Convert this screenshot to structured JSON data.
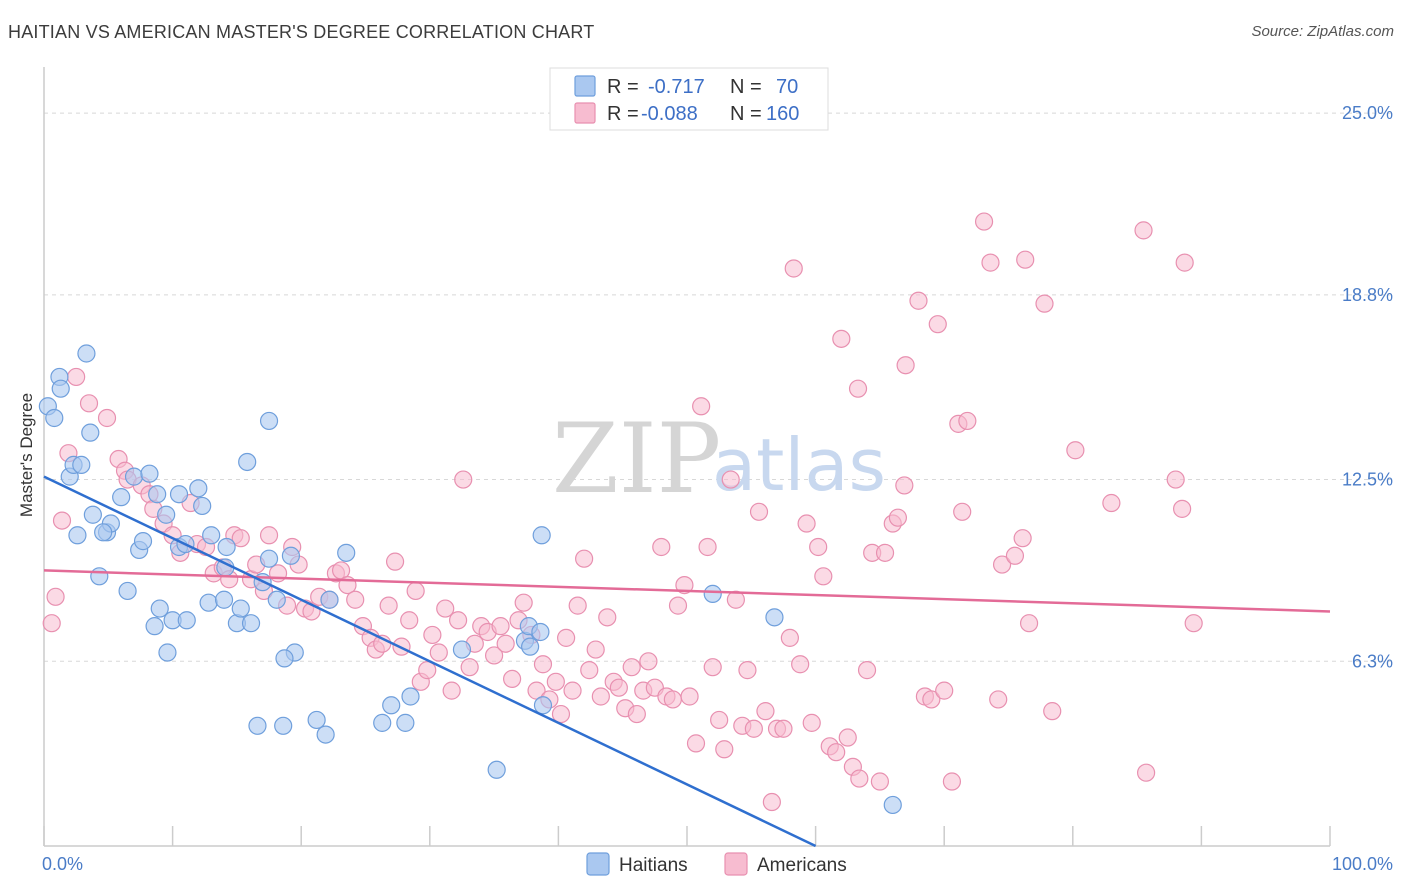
{
  "header": {
    "title": "HAITIAN VS AMERICAN MASTER'S DEGREE CORRELATION CHART",
    "source": "Source: ZipAtlas.com"
  },
  "legend": {
    "rows": [
      {
        "r_label": "R =",
        "r_value": "-0.717",
        "n_label": "N =",
        "n_value": "70"
      },
      {
        "r_label": "R =",
        "r_value": "-0.088",
        "n_label": "N =",
        "n_value": "160"
      }
    ]
  },
  "bottom_legend": [
    "Haitians",
    "Americans"
  ],
  "watermark": {
    "zip": "ZIP",
    "atlas": "atlas"
  },
  "colors": {
    "haitians_fill": "#aac8f0",
    "haitians_stroke": "#6f9fdc",
    "haitians_line": "#2f6fcf",
    "americans_fill": "#f7bcd0",
    "americans_stroke": "#e890b0",
    "americans_line": "#e36b97",
    "grid": "#d8d8d8",
    "tick_text": "#4a7cc7"
  },
  "chart_data": {
    "type": "scatter",
    "title": "HAITIAN VS AMERICAN MASTER'S DEGREE CORRELATION CHART",
    "xlabel": "",
    "ylabel": "Master's Degree",
    "xlim": [
      0,
      100
    ],
    "ylim": [
      0,
      26.3
    ],
    "x_tick_labels": [
      "0.0%",
      "100.0%"
    ],
    "y_ticks": [
      6.3,
      12.5,
      18.8,
      25.0
    ],
    "y_tick_labels": [
      "6.3%",
      "12.5%",
      "18.8%",
      "25.0%"
    ],
    "grid": true,
    "legend_position": "top-center",
    "series": [
      {
        "name": "Haitians",
        "r": -0.717,
        "n": 70,
        "trend": {
          "x": [
            0,
            60
          ],
          "y": [
            12.6,
            0
          ]
        },
        "points": [
          [
            0.3,
            15.0
          ],
          [
            0.8,
            14.6
          ],
          [
            1.2,
            16.0
          ],
          [
            1.3,
            15.6
          ],
          [
            3.3,
            16.8
          ],
          [
            3.6,
            14.1
          ],
          [
            2.0,
            12.6
          ],
          [
            2.3,
            13.0
          ],
          [
            2.9,
            13.0
          ],
          [
            3.8,
            11.3
          ],
          [
            4.9,
            10.7
          ],
          [
            5.2,
            11.0
          ],
          [
            2.6,
            10.6
          ],
          [
            4.6,
            10.7
          ],
          [
            6.0,
            11.9
          ],
          [
            7.0,
            12.6
          ],
          [
            8.2,
            12.7
          ],
          [
            8.8,
            12.0
          ],
          [
            7.4,
            10.1
          ],
          [
            7.7,
            10.4
          ],
          [
            9.5,
            11.3
          ],
          [
            10.5,
            10.2
          ],
          [
            11.0,
            10.3
          ],
          [
            13.0,
            10.6
          ],
          [
            14.2,
            10.2
          ],
          [
            10.5,
            12.0
          ],
          [
            12.0,
            12.2
          ],
          [
            12.3,
            11.6
          ],
          [
            4.3,
            9.2
          ],
          [
            6.5,
            8.7
          ],
          [
            9.0,
            8.1
          ],
          [
            8.6,
            7.5
          ],
          [
            10.0,
            7.7
          ],
          [
            11.1,
            7.7
          ],
          [
            12.8,
            8.3
          ],
          [
            14.0,
            8.4
          ],
          [
            9.6,
            6.6
          ],
          [
            14.1,
            9.5
          ],
          [
            15.0,
            7.6
          ],
          [
            15.3,
            8.1
          ],
          [
            16.1,
            7.6
          ],
          [
            17.0,
            9.0
          ],
          [
            18.1,
            8.4
          ],
          [
            17.5,
            9.8
          ],
          [
            19.2,
            9.9
          ],
          [
            15.8,
            13.1
          ],
          [
            17.5,
            14.5
          ],
          [
            19.5,
            6.6
          ],
          [
            23.5,
            10.0
          ],
          [
            22.2,
            8.4
          ],
          [
            18.7,
            6.4
          ],
          [
            16.6,
            4.1
          ],
          [
            18.6,
            4.1
          ],
          [
            21.2,
            4.3
          ],
          [
            21.9,
            3.8
          ],
          [
            26.3,
            4.2
          ],
          [
            28.1,
            4.2
          ],
          [
            27.0,
            4.8
          ],
          [
            28.5,
            5.1
          ],
          [
            32.5,
            6.7
          ],
          [
            37.4,
            7.0
          ],
          [
            37.7,
            7.5
          ],
          [
            37.8,
            6.8
          ],
          [
            38.6,
            7.3
          ],
          [
            38.8,
            4.8
          ],
          [
            35.2,
            2.6
          ],
          [
            38.7,
            10.6
          ],
          [
            52.0,
            8.6
          ],
          [
            56.8,
            7.8
          ],
          [
            66.0,
            1.4
          ]
        ]
      },
      {
        "name": "Americans",
        "r": -0.088,
        "n": 160,
        "trend": {
          "x": [
            0,
            100
          ],
          "y": [
            9.4,
            8.0
          ]
        },
        "points": [
          [
            0.6,
            7.6
          ],
          [
            0.9,
            8.5
          ],
          [
            1.4,
            11.1
          ],
          [
            1.9,
            13.4
          ],
          [
            2.5,
            16.0
          ],
          [
            3.5,
            15.1
          ],
          [
            4.9,
            14.6
          ],
          [
            5.8,
            13.2
          ],
          [
            6.3,
            12.8
          ],
          [
            6.5,
            12.5
          ],
          [
            7.6,
            12.3
          ],
          [
            8.2,
            12.0
          ],
          [
            8.5,
            11.5
          ],
          [
            9.3,
            11.0
          ],
          [
            10.0,
            10.6
          ],
          [
            10.6,
            10.0
          ],
          [
            11.4,
            11.7
          ],
          [
            11.9,
            10.3
          ],
          [
            12.6,
            10.2
          ],
          [
            13.2,
            9.3
          ],
          [
            13.9,
            9.5
          ],
          [
            14.4,
            9.1
          ],
          [
            14.8,
            10.6
          ],
          [
            15.3,
            10.5
          ],
          [
            16.1,
            9.1
          ],
          [
            16.5,
            9.6
          ],
          [
            17.1,
            8.7
          ],
          [
            17.5,
            10.6
          ],
          [
            18.2,
            9.3
          ],
          [
            18.9,
            8.2
          ],
          [
            19.3,
            10.2
          ],
          [
            19.8,
            9.6
          ],
          [
            20.3,
            8.1
          ],
          [
            20.8,
            8.0
          ],
          [
            21.4,
            8.5
          ],
          [
            22.2,
            8.4
          ],
          [
            22.7,
            9.3
          ],
          [
            23.1,
            9.4
          ],
          [
            23.6,
            8.9
          ],
          [
            24.2,
            8.4
          ],
          [
            24.8,
            7.5
          ],
          [
            25.4,
            7.1
          ],
          [
            25.8,
            6.7
          ],
          [
            26.3,
            6.9
          ],
          [
            26.8,
            8.2
          ],
          [
            27.3,
            9.7
          ],
          [
            27.8,
            6.8
          ],
          [
            28.4,
            7.7
          ],
          [
            28.9,
            8.7
          ],
          [
            29.3,
            5.6
          ],
          [
            29.8,
            6.0
          ],
          [
            30.2,
            7.2
          ],
          [
            30.7,
            6.6
          ],
          [
            31.2,
            8.1
          ],
          [
            31.7,
            5.3
          ],
          [
            32.2,
            7.7
          ],
          [
            32.6,
            12.5
          ],
          [
            33.1,
            6.1
          ],
          [
            33.5,
            6.9
          ],
          [
            34.0,
            7.5
          ],
          [
            34.5,
            7.3
          ],
          [
            35.0,
            6.5
          ],
          [
            35.5,
            7.5
          ],
          [
            35.9,
            6.9
          ],
          [
            36.4,
            5.7
          ],
          [
            36.9,
            7.7
          ],
          [
            37.3,
            8.3
          ],
          [
            37.9,
            7.2
          ],
          [
            38.3,
            5.3
          ],
          [
            38.8,
            6.2
          ],
          [
            39.3,
            5.0
          ],
          [
            39.8,
            5.6
          ],
          [
            40.2,
            4.5
          ],
          [
            40.6,
            7.1
          ],
          [
            41.1,
            5.3
          ],
          [
            41.5,
            8.2
          ],
          [
            42.0,
            9.8
          ],
          [
            42.4,
            6.0
          ],
          [
            42.9,
            6.7
          ],
          [
            43.3,
            5.1
          ],
          [
            43.8,
            7.8
          ],
          [
            44.3,
            5.6
          ],
          [
            44.7,
            5.4
          ],
          [
            45.2,
            4.7
          ],
          [
            45.7,
            6.1
          ],
          [
            46.1,
            4.5
          ],
          [
            46.6,
            5.3
          ],
          [
            47.0,
            6.3
          ],
          [
            47.5,
            5.4
          ],
          [
            48.0,
            10.2
          ],
          [
            48.4,
            5.1
          ],
          [
            48.9,
            5.0
          ],
          [
            49.3,
            8.2
          ],
          [
            49.8,
            8.9
          ],
          [
            50.2,
            5.1
          ],
          [
            50.7,
            3.5
          ],
          [
            51.1,
            15.0
          ],
          [
            51.6,
            10.2
          ],
          [
            52.0,
            6.1
          ],
          [
            52.5,
            4.3
          ],
          [
            52.9,
            3.3
          ],
          [
            53.4,
            12.5
          ],
          [
            53.8,
            8.4
          ],
          [
            54.3,
            4.1
          ],
          [
            54.7,
            6.0
          ],
          [
            55.2,
            4.0
          ],
          [
            55.6,
            11.4
          ],
          [
            56.1,
            4.6
          ],
          [
            56.6,
            1.5
          ],
          [
            57.0,
            4.0
          ],
          [
            57.5,
            4.0
          ],
          [
            58.0,
            7.1
          ],
          [
            58.3,
            19.7
          ],
          [
            58.8,
            6.2
          ],
          [
            59.3,
            11.0
          ],
          [
            59.7,
            4.2
          ],
          [
            60.2,
            10.2
          ],
          [
            60.6,
            9.2
          ],
          [
            61.1,
            3.4
          ],
          [
            61.6,
            3.2
          ],
          [
            62.0,
            17.3
          ],
          [
            62.5,
            3.7
          ],
          [
            62.9,
            2.7
          ],
          [
            63.4,
            2.3
          ],
          [
            64.0,
            6.0
          ],
          [
            64.4,
            10.0
          ],
          [
            65.0,
            2.2
          ],
          [
            65.4,
            10.0
          ],
          [
            66.0,
            11.0
          ],
          [
            66.4,
            11.2
          ],
          [
            66.9,
            12.3
          ],
          [
            68.0,
            18.6
          ],
          [
            68.5,
            5.1
          ],
          [
            69.0,
            5.0
          ],
          [
            69.5,
            17.8
          ],
          [
            70.0,
            5.3
          ],
          [
            70.6,
            2.2
          ],
          [
            71.1,
            14.4
          ],
          [
            71.8,
            14.5
          ],
          [
            73.1,
            21.3
          ],
          [
            73.6,
            19.9
          ],
          [
            74.5,
            9.6
          ],
          [
            75.5,
            9.9
          ],
          [
            76.1,
            10.5
          ],
          [
            76.6,
            7.6
          ],
          [
            77.8,
            18.5
          ],
          [
            78.4,
            4.6
          ],
          [
            80.2,
            13.5
          ],
          [
            85.5,
            21.0
          ],
          [
            85.7,
            2.5
          ],
          [
            88.7,
            19.9
          ],
          [
            88.0,
            12.5
          ],
          [
            88.5,
            11.5
          ],
          [
            89.4,
            7.6
          ],
          [
            63.3,
            15.6
          ],
          [
            71.4,
            11.4
          ],
          [
            76.3,
            20.0
          ],
          [
            83.0,
            11.7
          ],
          [
            67.0,
            16.4
          ],
          [
            74.2,
            5.0
          ]
        ]
      }
    ]
  }
}
